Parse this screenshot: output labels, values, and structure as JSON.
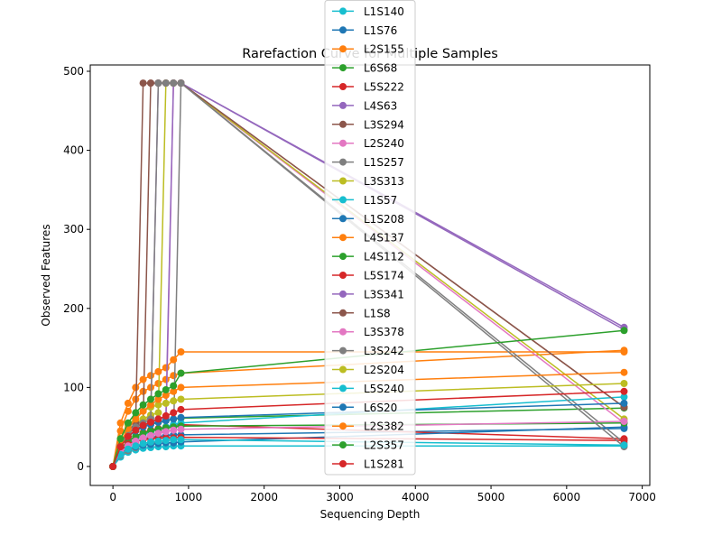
{
  "chart_data": {
    "type": "line",
    "title": "Rarefaction Curve for Multiple Samples",
    "xlabel": "Sequencing Depth",
    "ylabel": "Observed Features",
    "xlim": [
      -300,
      7100
    ],
    "ylim": [
      -24,
      508
    ],
    "xticks": [
      0,
      1000,
      2000,
      3000,
      4000,
      5000,
      6000,
      7000
    ],
    "yticks": [
      0,
      100,
      200,
      300,
      400,
      500
    ],
    "grid": false,
    "legend_position": "top-center",
    "markers": "circle",
    "series": [
      {
        "name": "L1S140",
        "color": "#17becf",
        "x": [
          0,
          100,
          200,
          300,
          400,
          500,
          600,
          700,
          800,
          900,
          6760
        ],
        "y": [
          0,
          12,
          18,
          21,
          23,
          24,
          25,
          25,
          26,
          26,
          26
        ]
      },
      {
        "name": "L1S76",
        "color": "#1f77b4",
        "x": [
          0,
          100,
          200,
          300,
          400,
          500,
          600,
          700,
          800,
          900,
          6760
        ],
        "y": [
          0,
          20,
          28,
          32,
          35,
          37,
          38,
          39,
          40,
          40,
          48
        ]
      },
      {
        "name": "L2S155",
        "color": "#ff7f0e",
        "x": [
          0,
          100,
          200,
          300,
          400,
          500,
          600,
          700,
          800,
          900,
          6760
        ],
        "y": [
          0,
          45,
          70,
          85,
          95,
          100,
          105,
          110,
          115,
          118,
          147
        ]
      },
      {
        "name": "L6S68",
        "color": "#2ca02c",
        "x": [
          0,
          100,
          200,
          300,
          400,
          500,
          600,
          700,
          800,
          900,
          6760
        ],
        "y": [
          0,
          25,
          38,
          45,
          50,
          54,
          56,
          58,
          60,
          61,
          74
        ]
      },
      {
        "name": "L5S222",
        "color": "#d62728",
        "x": [
          0,
          100,
          200,
          300,
          400,
          500,
          600,
          700,
          800,
          900,
          6760
        ],
        "y": [
          0,
          22,
          32,
          38,
          43,
          46,
          48,
          50,
          52,
          53,
          35
        ]
      },
      {
        "name": "L4S63",
        "color": "#9467bd",
        "x": [
          0,
          100,
          200,
          300,
          400,
          500,
          600,
          700,
          800,
          900,
          6760
        ],
        "y": [
          0,
          30,
          45,
          52,
          58,
          62,
          485,
          485,
          485,
          485,
          176
        ]
      },
      {
        "name": "L3S294",
        "color": "#8c564b",
        "x": [
          0,
          100,
          200,
          300,
          400,
          500,
          600,
          700,
          800,
          900,
          6760
        ],
        "y": [
          0,
          30,
          42,
          50,
          55,
          485,
          485,
          485,
          485,
          485,
          75
        ]
      },
      {
        "name": "L2S240",
        "color": "#e377c2",
        "x": [
          0,
          100,
          200,
          300,
          400,
          500,
          600,
          700,
          800,
          900,
          6760
        ],
        "y": [
          0,
          15,
          25,
          30,
          35,
          40,
          43,
          46,
          485,
          485,
          55
        ]
      },
      {
        "name": "L1S257",
        "color": "#7f7f7f",
        "x": [
          0,
          100,
          200,
          300,
          400,
          500,
          600,
          700,
          800,
          900,
          6760
        ],
        "y": [
          0,
          14,
          20,
          24,
          27,
          29,
          31,
          33,
          34,
          485,
          30
        ]
      },
      {
        "name": "L3S313",
        "color": "#bcbd22",
        "x": [
          0,
          100,
          200,
          300,
          400,
          500,
          600,
          700,
          800,
          900,
          6760
        ],
        "y": [
          0,
          30,
          45,
          55,
          60,
          65,
          68,
          485,
          485,
          485,
          60
        ]
      },
      {
        "name": "L1S57",
        "color": "#17becf",
        "x": [
          0,
          100,
          200,
          300,
          400,
          500,
          600,
          700,
          800,
          900,
          6760
        ],
        "y": [
          0,
          18,
          28,
          35,
          40,
          44,
          47,
          50,
          53,
          55,
          88
        ]
      },
      {
        "name": "L1S208",
        "color": "#1f77b4",
        "x": [
          0,
          100,
          200,
          300,
          400,
          500,
          600,
          700,
          800,
          900,
          6760
        ],
        "y": [
          0,
          16,
          22,
          25,
          27,
          28,
          29,
          30,
          30,
          31,
          50
        ]
      },
      {
        "name": "L4S137",
        "color": "#ff7f0e",
        "x": [
          0,
          100,
          200,
          300,
          400,
          500,
          600,
          700,
          800,
          900,
          6760
        ],
        "y": [
          0,
          55,
          80,
          100,
          110,
          115,
          120,
          125,
          135,
          145,
          145
        ]
      },
      {
        "name": "L4S112",
        "color": "#2ca02c",
        "x": [
          0,
          100,
          200,
          300,
          400,
          500,
          600,
          700,
          800,
          900,
          6760
        ],
        "y": [
          0,
          22,
          32,
          38,
          42,
          45,
          47,
          49,
          50,
          51,
          55
        ]
      },
      {
        "name": "L5S174",
        "color": "#d62728",
        "x": [
          0,
          100,
          200,
          300,
          400,
          500,
          600,
          700,
          800,
          900,
          6760
        ],
        "y": [
          0,
          20,
          28,
          32,
          34,
          35,
          36,
          36,
          36,
          37,
          33
        ]
      },
      {
        "name": "L3S341",
        "color": "#9467bd",
        "x": [
          0,
          100,
          200,
          300,
          400,
          500,
          600,
          700,
          800,
          900,
          6760
        ],
        "y": [
          0,
          25,
          38,
          46,
          52,
          56,
          60,
          62,
          485,
          485,
          173
        ]
      },
      {
        "name": "L1S8",
        "color": "#8c564b",
        "x": [
          0,
          100,
          200,
          300,
          400,
          500,
          600,
          700,
          800,
          900,
          6760
        ],
        "y": [
          0,
          30,
          45,
          55,
          485,
          485,
          485,
          485,
          485,
          485,
          75
        ]
      },
      {
        "name": "L3S378",
        "color": "#e377c2",
        "x": [
          0,
          100,
          200,
          300,
          400,
          500,
          600,
          700,
          800,
          900,
          6760
        ],
        "y": [
          0,
          18,
          26,
          32,
          36,
          39,
          42,
          44,
          46,
          47,
          57
        ]
      },
      {
        "name": "L3S242",
        "color": "#7f7f7f",
        "x": [
          0,
          100,
          200,
          300,
          400,
          500,
          600,
          700,
          800,
          900,
          6760
        ],
        "y": [
          0,
          28,
          42,
          50,
          55,
          60,
          485,
          485,
          485,
          485,
          25
        ]
      },
      {
        "name": "L2S204",
        "color": "#bcbd22",
        "x": [
          0,
          100,
          200,
          300,
          400,
          500,
          600,
          700,
          800,
          900,
          6760
        ],
        "y": [
          0,
          35,
          52,
          62,
          70,
          75,
          78,
          80,
          83,
          85,
          105
        ]
      },
      {
        "name": "L5S240",
        "color": "#17becf",
        "x": [
          0,
          100,
          200,
          300,
          400,
          500,
          600,
          700,
          800,
          900,
          6760
        ],
        "y": [
          0,
          15,
          22,
          26,
          29,
          31,
          32,
          33,
          34,
          34,
          27
        ]
      },
      {
        "name": "L6S20",
        "color": "#1f77b4",
        "x": [
          0,
          100,
          200,
          300,
          400,
          500,
          600,
          700,
          800,
          900,
          6760
        ],
        "y": [
          0,
          25,
          38,
          45,
          50,
          53,
          56,
          58,
          60,
          62,
          80
        ]
      },
      {
        "name": "L2S382",
        "color": "#ff7f0e",
        "x": [
          0,
          100,
          200,
          300,
          400,
          500,
          600,
          700,
          800,
          900,
          6760
        ],
        "y": [
          0,
          30,
          48,
          60,
          70,
          78,
          85,
          90,
          95,
          100,
          119
        ]
      },
      {
        "name": "L2S357",
        "color": "#2ca02c",
        "x": [
          0,
          100,
          200,
          300,
          400,
          500,
          600,
          700,
          800,
          900,
          6760
        ],
        "y": [
          0,
          35,
          55,
          68,
          78,
          85,
          92,
          97,
          102,
          118,
          172
        ]
      },
      {
        "name": "L1S281",
        "color": "#d62728",
        "x": [
          0,
          100,
          200,
          300,
          400,
          500,
          600,
          700,
          800,
          900,
          6760
        ],
        "y": [
          0,
          25,
          38,
          46,
          52,
          56,
          60,
          64,
          68,
          72,
          95
        ]
      }
    ]
  }
}
